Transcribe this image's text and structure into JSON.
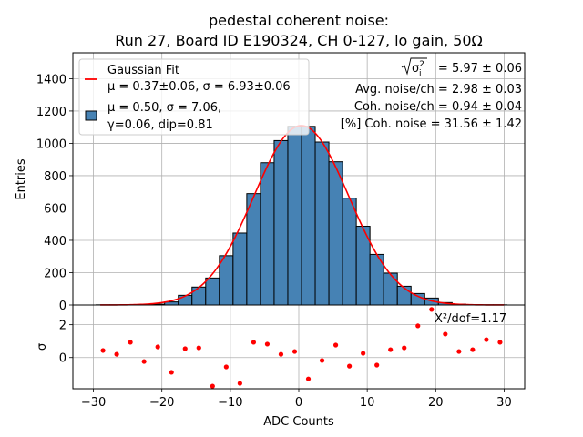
{
  "chart_data": {
    "type": "bar",
    "title_line1": "pedestal coherent noise:",
    "title_line2": "Run 27, Board ID E190324, CH 0-127, lo gain, 50Ω",
    "xlabel": "ADC Counts",
    "ylabel": "Entries",
    "residual_ylabel": "σ",
    "xlim": [
      -33,
      33
    ],
    "ylim": [
      0,
      1560
    ],
    "residual_ylim": [
      -1.9,
      3.2
    ],
    "x_ticks": [
      -30,
      -20,
      -10,
      0,
      10,
      20,
      30
    ],
    "x_tick_labels": [
      "−30",
      "−20",
      "−10",
      "0",
      "10",
      "20",
      "30"
    ],
    "y_ticks": [
      0,
      200,
      400,
      600,
      800,
      1000,
      1200,
      1400
    ],
    "y_tick_labels": [
      "0",
      "200",
      "400",
      "600",
      "800",
      "1000",
      "1200",
      "1400"
    ],
    "residual_y_ticks": [
      0,
      2
    ],
    "residual_y_tick_labels": [
      "0",
      "2"
    ],
    "grid": true,
    "bin_width": 2,
    "histogram": {
      "bin_centers": [
        -28.6,
        -26.6,
        -24.6,
        -22.6,
        -20.6,
        -18.6,
        -16.6,
        -14.6,
        -12.6,
        -10.6,
        -8.6,
        -6.6,
        -4.6,
        -2.6,
        -0.6,
        1.4,
        3.4,
        5.4,
        7.4,
        9.4,
        11.4,
        13.4,
        15.4,
        17.4,
        19.4,
        21.4,
        23.4,
        25.4,
        27.4,
        29.4
      ],
      "values": [
        1,
        1,
        2,
        3,
        5,
        19,
        60,
        111,
        167,
        305,
        445,
        689,
        880,
        1017,
        1105,
        1105,
        1008,
        886,
        661,
        487,
        313,
        197,
        116,
        71,
        43,
        15,
        5,
        2,
        1,
        1
      ],
      "color": "#4682b4",
      "edge_color": "#000000"
    },
    "fit": {
      "type": "gaussian",
      "mu": 0.37,
      "sigma": 6.93,
      "amplitude": 1110,
      "x_range": [
        -29,
        30
      ],
      "color": "#ff0000"
    },
    "residuals": {
      "x": [
        -28.6,
        -26.6,
        -24.6,
        -22.6,
        -20.6,
        -18.6,
        -16.6,
        -14.6,
        -12.6,
        -10.6,
        -8.6,
        -6.6,
        -4.6,
        -2.6,
        -0.6,
        1.4,
        3.4,
        5.4,
        7.4,
        9.4,
        11.4,
        13.4,
        15.4,
        17.4,
        19.4,
        21.4,
        23.4,
        25.4,
        27.4,
        29.4
      ],
      "values": [
        0.43,
        0.2,
        0.93,
        -0.24,
        0.65,
        -0.9,
        0.54,
        0.59,
        -1.74,
        -0.57,
        -1.57,
        0.93,
        0.82,
        0.2,
        0.37,
        -1.3,
        -0.18,
        0.76,
        -0.52,
        0.26,
        -0.46,
        0.48,
        0.59,
        1.93,
        2.93,
        1.43,
        0.37,
        0.48,
        1.09,
        0.93
      ],
      "color": "#ff0000"
    },
    "legend": {
      "placement": "top-left",
      "entries": [
        {
          "label_line1": "Gaussian Fit",
          "label_line2": "μ = 0.37±0.06, σ = 6.93±0.06",
          "marker": "line",
          "color": "#ff0000"
        },
        {
          "label_line1": "μ = 0.50, σ = 7.06,",
          "label_line2": "γ=0.06, dip=0.81",
          "marker": "patch",
          "color": "#4682b4"
        }
      ]
    },
    "annotations": {
      "sqrt_sigma_label": "√σᵢ²",
      "sqrt_sigma_value": "= 5.97 ± 0.06",
      "avg_noise": "Avg. noise/ch = 2.98 ± 0.03",
      "coh_noise": "Coh. noise/ch = 0.94 ± 0.04",
      "coh_pct": "[%] Coh. noise = 31.56  ± 1.42",
      "chi2": "Χ²/dof=1.17"
    }
  }
}
